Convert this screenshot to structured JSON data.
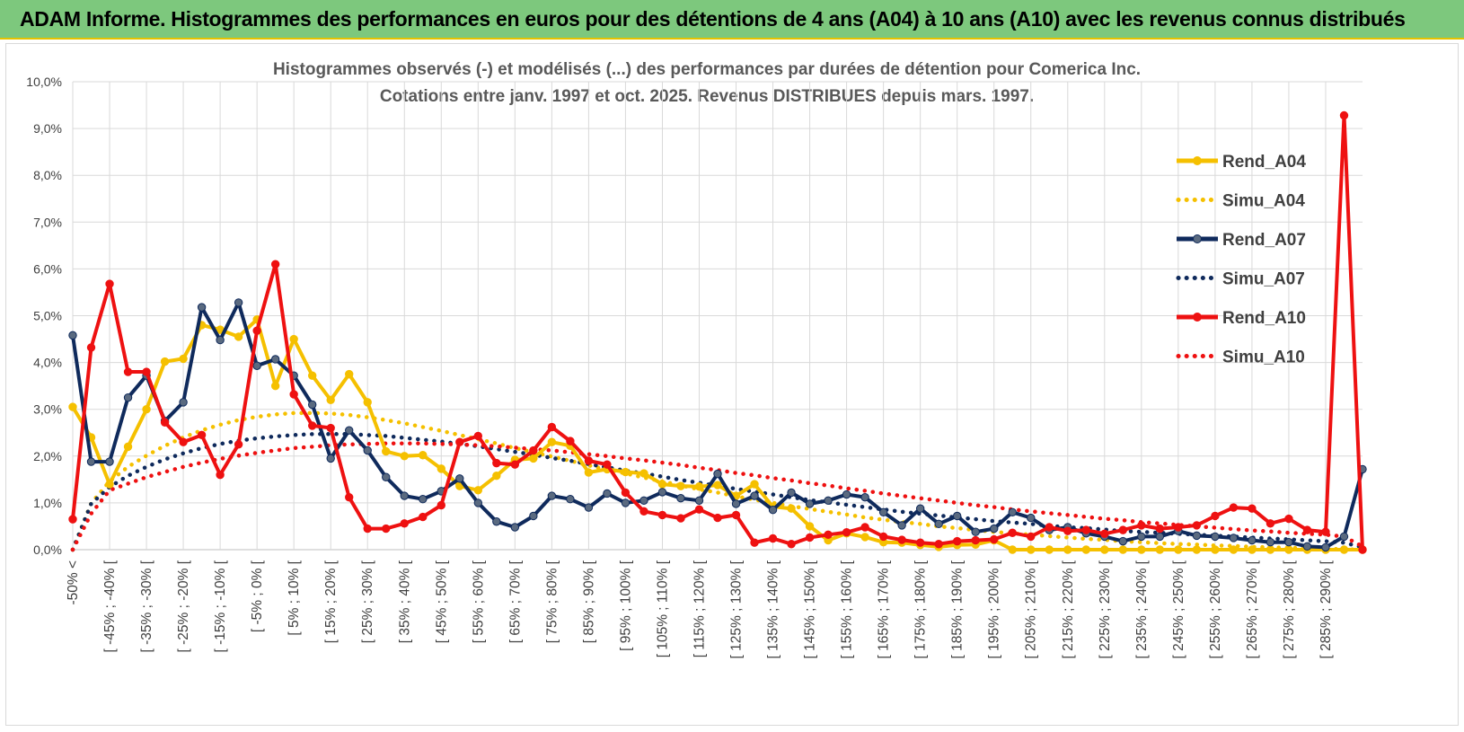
{
  "header": {
    "title": "ADAM Informe. Histogrammes des performances en euros pour des détentions de 4 ans (A04) à 10 ans (A10) avec les revenus connus distribués"
  },
  "chart_data": {
    "type": "line",
    "title": "Histogrammes observés (-) et modélisés (...) des performances par durées de détention pour Comerica Inc.",
    "subtitle": "Cotations entre janv. 1997 et oct. 2025.  Revenus DISTRIBUES depuis mars. 1997.",
    "ylim": [
      0,
      10
    ],
    "y_ticks": [
      "0,0%",
      "1,0%",
      "2,0%",
      "3,0%",
      "4,0%",
      "5,0%",
      "6,0%",
      "7,0%",
      "8,0%",
      "9,0%",
      "10,0%"
    ],
    "x_labels": [
      "-50% <",
      "[ -45% ; -40% [",
      "[ -35% ; -30% [",
      "[ -25% ; -20% [",
      "[ -15% ; -10% [",
      "[ -5% ; 0% [",
      "[ 5% ; 10% [",
      "[ 15% ; 20% [",
      "[ 25% ; 30% [",
      "[ 35% ; 40% [",
      "[ 45% ; 50% [",
      "[ 55% ; 60% [",
      "[ 65% ; 70% [",
      "[ 75% ; 80% [",
      "[ 85% ; 90% [",
      "[ 95% ; 100% [",
      "[ 105% ; 110% [",
      "[ 115% ; 120% [",
      "[ 125% ; 130% [",
      "[ 135% ; 140% [",
      "[ 145% ; 150% [",
      "[ 155% ; 160% [",
      "[ 165% ; 170% [",
      "[ 175% ; 180% [",
      "[ 185% ; 190% [",
      "[ 195% ; 200% [",
      "[ 205% ; 210% [",
      "[ 215% ; 220% [",
      "[ 225% ; 230% [",
      "[ 235% ; 240% [",
      "[ 245% ; 250% [",
      "[ 255% ; 260% [",
      "[ 265% ; 270% [",
      "[ 275% ; 280% [",
      "[ 285% ; 290% ["
    ],
    "n_points": 71,
    "legend_position": "right",
    "series": [
      {
        "name": "Rend_A04",
        "style": "solid",
        "markers": true,
        "color": "#f5c000",
        "values": [
          3.05,
          2.4,
          1.4,
          2.2,
          3.0,
          4.02,
          4.08,
          4.8,
          4.7,
          4.55,
          4.92,
          3.5,
          4.5,
          3.72,
          3.2,
          3.75,
          3.15,
          2.1,
          2.0,
          2.02,
          1.73,
          1.36,
          1.27,
          1.58,
          1.92,
          1.95,
          2.3,
          2.22,
          1.65,
          1.72,
          1.66,
          1.63,
          1.4,
          1.36,
          1.35,
          1.38,
          1.15,
          1.4,
          0.92,
          0.88,
          0.5,
          0.2,
          0.35,
          0.27,
          0.16,
          0.15,
          0.1,
          0.06,
          0.1,
          0.11,
          0.2,
          0.0,
          0.0,
          0.0,
          0.0,
          0.0,
          0.0,
          0.0,
          0.0,
          0.0,
          0.0,
          0.0,
          0.0,
          0.0,
          0.0,
          0.0,
          0.0,
          0.0,
          0.0,
          0.0,
          0.0
        ]
      },
      {
        "name": "Simu_A04",
        "style": "dotted",
        "markers": false,
        "color": "#f5c000",
        "values": [
          0.0,
          0.99,
          1.46,
          1.77,
          2.01,
          2.22,
          2.4,
          2.55,
          2.67,
          2.77,
          2.84,
          2.89,
          2.92,
          2.92,
          2.91,
          2.88,
          2.83,
          2.77,
          2.7,
          2.62,
          2.54,
          2.45,
          2.36,
          2.27,
          2.17,
          2.08,
          1.99,
          1.9,
          1.8,
          1.71,
          1.63,
          1.54,
          1.46,
          1.37,
          1.29,
          1.22,
          1.14,
          1.07,
          1.0,
          0.93,
          0.87,
          0.81,
          0.75,
          0.69,
          0.64,
          0.59,
          0.55,
          0.5,
          0.46,
          0.42,
          0.38,
          0.35,
          0.32,
          0.29,
          0.26,
          0.23,
          0.21,
          0.18,
          0.16,
          0.14,
          0.12,
          0.11,
          0.09,
          0.08,
          0.06,
          0.05,
          0.04,
          0.03,
          0.02,
          0.01,
          0.0
        ]
      },
      {
        "name": "Rend_A07",
        "style": "solid",
        "markers": true,
        "color": "#0f2a5c",
        "values": [
          4.58,
          1.88,
          1.88,
          3.25,
          3.72,
          2.75,
          3.15,
          5.18,
          4.48,
          5.28,
          3.93,
          4.07,
          3.72,
          3.1,
          1.95,
          2.55,
          2.12,
          1.55,
          1.15,
          1.08,
          1.25,
          1.52,
          1.0,
          0.6,
          0.48,
          0.72,
          1.15,
          1.08,
          0.9,
          1.2,
          1.0,
          1.05,
          1.23,
          1.1,
          1.05,
          1.62,
          0.98,
          1.15,
          0.85,
          1.22,
          0.98,
          1.05,
          1.18,
          1.12,
          0.8,
          0.52,
          0.88,
          0.55,
          0.72,
          0.38,
          0.45,
          0.8,
          0.68,
          0.42,
          0.48,
          0.35,
          0.28,
          0.18,
          0.28,
          0.28,
          0.4,
          0.3,
          0.28,
          0.25,
          0.2,
          0.16,
          0.16,
          0.07,
          0.05,
          0.28,
          1.72
        ]
      },
      {
        "name": "Simu_A07",
        "style": "dotted",
        "markers": false,
        "color": "#0f2a5c",
        "values": [
          0.0,
          0.98,
          1.34,
          1.58,
          1.77,
          1.93,
          2.06,
          2.17,
          2.26,
          2.33,
          2.38,
          2.42,
          2.45,
          2.47,
          2.47,
          2.47,
          2.45,
          2.43,
          2.39,
          2.35,
          2.31,
          2.26,
          2.21,
          2.15,
          2.09,
          2.03,
          1.96,
          1.9,
          1.83,
          1.76,
          1.69,
          1.63,
          1.56,
          1.49,
          1.43,
          1.36,
          1.3,
          1.24,
          1.18,
          1.12,
          1.06,
          1.01,
          0.96,
          0.91,
          0.86,
          0.81,
          0.77,
          0.73,
          0.69,
          0.65,
          0.61,
          0.58,
          0.55,
          0.51,
          0.48,
          0.46,
          0.43,
          0.4,
          0.38,
          0.36,
          0.34,
          0.32,
          0.3,
          0.28,
          0.26,
          0.24,
          0.22,
          0.2,
          0.18,
          0.15,
          0.05
        ]
      },
      {
        "name": "Rend_A10",
        "style": "solid",
        "markers": true,
        "color": "#ee1111",
        "values": [
          0.65,
          4.32,
          5.68,
          3.8,
          3.8,
          2.72,
          2.3,
          2.45,
          1.6,
          2.25,
          4.68,
          6.1,
          3.32,
          2.65,
          2.6,
          1.12,
          0.45,
          0.45,
          0.56,
          0.7,
          0.95,
          2.3,
          2.43,
          1.85,
          1.82,
          2.12,
          2.62,
          2.32,
          1.9,
          1.82,
          1.22,
          0.82,
          0.74,
          0.67,
          0.86,
          0.68,
          0.74,
          0.15,
          0.24,
          0.12,
          0.26,
          0.32,
          0.37,
          0.48,
          0.28,
          0.21,
          0.15,
          0.12,
          0.18,
          0.2,
          0.22,
          0.36,
          0.28,
          0.48,
          0.4,
          0.42,
          0.34,
          0.42,
          0.52,
          0.45,
          0.48,
          0.52,
          0.72,
          0.9,
          0.88,
          0.56,
          0.66,
          0.42,
          0.38,
          9.28,
          0.0
        ]
      },
      {
        "name": "Simu_A10",
        "style": "dotted",
        "markers": false,
        "color": "#ee1111",
        "values": [
          0.0,
          0.77,
          1.27,
          1.41,
          1.55,
          1.66,
          1.77,
          1.86,
          1.94,
          2.01,
          2.07,
          2.12,
          2.17,
          2.2,
          2.23,
          2.25,
          2.26,
          2.27,
          2.27,
          2.27,
          2.26,
          2.25,
          2.23,
          2.21,
          2.18,
          2.15,
          2.12,
          2.08,
          2.04,
          2.0,
          1.95,
          1.91,
          1.86,
          1.81,
          1.75,
          1.7,
          1.64,
          1.59,
          1.53,
          1.48,
          1.42,
          1.37,
          1.31,
          1.26,
          1.2,
          1.15,
          1.1,
          1.05,
          1.0,
          0.95,
          0.91,
          0.86,
          0.82,
          0.78,
          0.74,
          0.7,
          0.66,
          0.63,
          0.59,
          0.56,
          0.53,
          0.5,
          0.47,
          0.44,
          0.41,
          0.39,
          0.36,
          0.34,
          0.32,
          0.28,
          0.07
        ]
      }
    ]
  }
}
